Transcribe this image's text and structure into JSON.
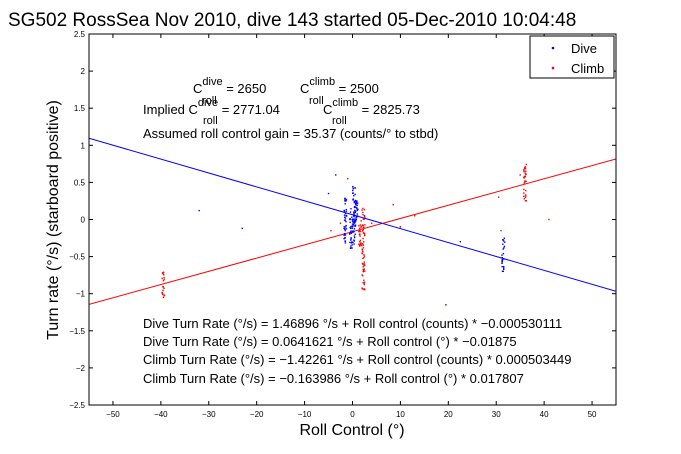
{
  "chart_data": {
    "type": "scatter",
    "title": "SG502 RossSea Nov 2010, dive 143 started 05-Dec-2010 10:04:48",
    "xlabel": "Roll Control (°)",
    "ylabel": "Turn rate (°/s) (starboard positive)",
    "xlim": [
      -55,
      55
    ],
    "ylim": [
      -2.5,
      2.5
    ],
    "xticks": [
      -50,
      -40,
      -30,
      -20,
      -10,
      0,
      10,
      20,
      30,
      40,
      50
    ],
    "xtick_labels": [
      "−50",
      "−40",
      "−30",
      "−20",
      "−10",
      "0",
      "10",
      "20",
      "30",
      "40",
      "50"
    ],
    "yticks": [
      -2.5,
      -2,
      -1.5,
      -1,
      -0.5,
      0,
      0.5,
      1,
      1.5,
      2,
      2.5
    ],
    "ytick_labels": [
      "−2.5",
      "−2",
      "−1.5",
      "−1",
      "−0.5",
      "0",
      "0.5",
      "1",
      "1.5",
      "2",
      "2.5"
    ],
    "grid": false,
    "legend_position": "top-right",
    "colors": {
      "dive": "#0000ff",
      "climb": "#ff0000"
    },
    "legend": [
      {
        "label": "Dive",
        "color": "#0000ff"
      },
      {
        "label": "Climb",
        "color": "#ff0000"
      }
    ],
    "fit_lines": [
      {
        "series": "dive",
        "intercept": 0.0641621,
        "slope": -0.01875,
        "color": "#0000ff"
      },
      {
        "series": "climb",
        "intercept": -0.163986,
        "slope": 0.017807,
        "color": "#ff0000"
      }
    ],
    "series": [
      {
        "name": "Dive",
        "color": "#0000ff",
        "clusters": [
          {
            "x": 0.3,
            "y_min": -0.35,
            "y_max": 0.45
          },
          {
            "x": 0.6,
            "y_min": -0.05,
            "y_max": 0.3
          },
          {
            "x": 0.9,
            "y_min": -0.1,
            "y_max": 0.25
          },
          {
            "x": -0.3,
            "y_min": -0.4,
            "y_max": 0.15
          },
          {
            "x": -1.5,
            "y_min": -0.35,
            "y_max": 0.3
          },
          {
            "x": 31.5,
            "y_min": -0.7,
            "y_max": -0.25
          }
        ],
        "points": [
          {
            "x": -3.5,
            "y": 0.6
          },
          {
            "x": -5,
            "y": 0.35
          },
          {
            "x": 1.5,
            "y": -0.15
          },
          {
            "x": 2.5,
            "y": 0.05
          },
          {
            "x": 6,
            "y": -0.05
          },
          {
            "x": 10,
            "y": -0.1
          },
          {
            "x": 22.5,
            "y": -0.3
          },
          {
            "x": 19.5,
            "y": -1.15
          },
          {
            "x": -32,
            "y": 0.12
          },
          {
            "x": -23,
            "y": -0.12
          }
        ]
      },
      {
        "name": "Climb",
        "color": "#ff0000",
        "clusters": [
          {
            "x": 2.3,
            "y_min": -0.95,
            "y_max": 0.15
          },
          {
            "x": 1.6,
            "y_min": -0.4,
            "y_max": 0.0
          },
          {
            "x": 36,
            "y_min": 0.25,
            "y_max": 0.75
          },
          {
            "x": -39.5,
            "y_min": -1.05,
            "y_max": -0.7
          }
        ],
        "points": [
          {
            "x": 4,
            "y": -0.05
          },
          {
            "x": 8.5,
            "y": 0.2
          },
          {
            "x": 10,
            "y": -0.1
          },
          {
            "x": 13,
            "y": 0.05
          },
          {
            "x": 31,
            "y": -0.15
          },
          {
            "x": 35,
            "y": 0.6
          },
          {
            "x": -4.5,
            "y": -0.15
          },
          {
            "x": -2.5,
            "y": -0.05
          },
          {
            "x": -1,
            "y": 0.55
          },
          {
            "x": 41,
            "y": 0.0
          },
          {
            "x": 30.5,
            "y": 0.3
          }
        ]
      }
    ],
    "annotations": {
      "c_dive": {
        "c": "C",
        "sup": "dive",
        "sub": "roll",
        "value": " = 2650"
      },
      "c_climb": {
        "c": "C",
        "sup": "climb",
        "sub": "roll",
        "value": " = 2500"
      },
      "implied_prefix": "Implied C",
      "implied_dive": {
        "sup": "dive",
        "sub": "roll",
        "value": " = 2771.04"
      },
      "implied_climb": {
        "c": "C",
        "sup": "climb",
        "sub": "roll",
        "value": " = 2825.73"
      },
      "gain": "Assumed roll control gain = 35.37 (counts/° to stbd)",
      "eq1": "Dive Turn Rate (°/s) = 1.46896 °/s + Roll control (counts) * −0.000530111",
      "eq2": "Dive Turn Rate (°/s) = 0.0641621 °/s + Roll control (°) * −0.01875",
      "eq3": "Climb Turn Rate (°/s) = −1.42261 °/s + Roll control (counts) * 0.000503449",
      "eq4": "Climb Turn Rate (°/s) = −0.163986 °/s + Roll control (°) * 0.017807"
    }
  }
}
